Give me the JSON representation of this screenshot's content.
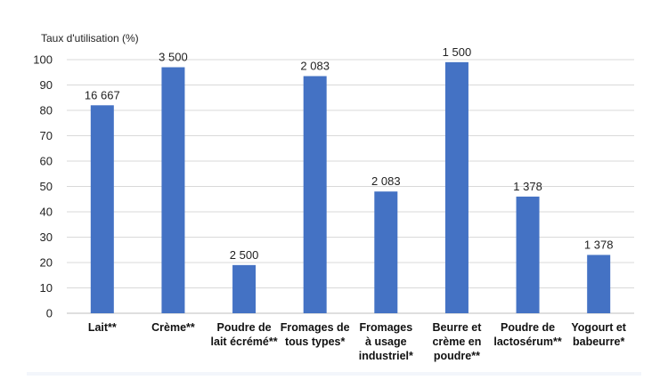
{
  "chart_data": {
    "type": "bar",
    "ylabel": "Taux d'utilisation (%)",
    "ylim": [
      0,
      100
    ],
    "yticks": [
      0,
      10,
      20,
      30,
      40,
      50,
      60,
      70,
      80,
      90,
      100
    ],
    "grid": true,
    "legend": "none",
    "bar_color": "#4472C4",
    "categories": [
      {
        "lines": [
          "Lait**"
        ]
      },
      {
        "lines": [
          "Crème**"
        ]
      },
      {
        "lines": [
          "Poudre de",
          "lait écrémé**"
        ]
      },
      {
        "lines": [
          "Fromages de",
          "tous types*"
        ]
      },
      {
        "lines": [
          "Fromages",
          "à usage",
          "industriel*"
        ]
      },
      {
        "lines": [
          "Beurre et",
          "crème en",
          "poudre**"
        ]
      },
      {
        "lines": [
          "Poudre de",
          "lactosérum**"
        ]
      },
      {
        "lines": [
          "Yogourt et",
          "babeurre*"
        ]
      }
    ],
    "values": [
      82,
      97,
      19,
      93.5,
      48,
      99,
      46,
      23
    ],
    "data_labels": [
      "16 667",
      "3 500",
      "2 500",
      "2 083",
      "2 083",
      "1 500",
      "1 378",
      "1 378"
    ]
  }
}
